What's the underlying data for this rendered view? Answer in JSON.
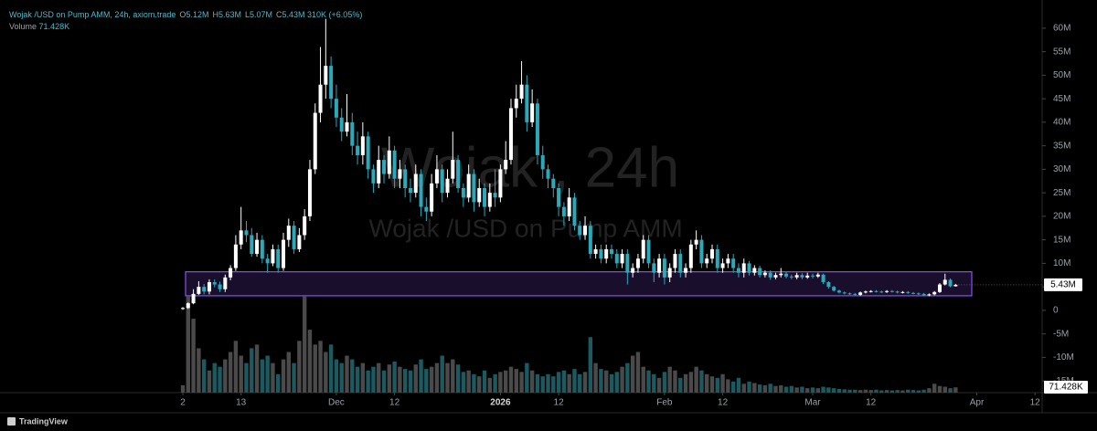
{
  "chart_data": {
    "type": "candlestick",
    "header": {
      "symbol": "Wojak /USD on Pump AMM, 24h, axiom.trade",
      "ohlc": [
        {
          "key": "O",
          "value": "5.12M"
        },
        {
          "key": "H",
          "value": "5.63M"
        },
        {
          "key": "L",
          "value": "5.07M"
        },
        {
          "key": "C",
          "value": "5.43M"
        }
      ],
      "change": "310K (+6.05%)",
      "volume_title": "Volume",
      "volume_value": "71.428K"
    },
    "watermark": {
      "title": "Wojak , 24h",
      "subtitle": "Wojak /USD on Pump AMM"
    },
    "logo": "TradingView",
    "last_price_label": "5.43M",
    "last_volume_label": "71.428K",
    "up_color": "#ffffff",
    "down_color": "#2aa9bb",
    "volume_up_color": "#4a4a4a",
    "volume_down_color": "#1b5a60",
    "zone": {
      "high": 8.2,
      "low": 3.1,
      "color": "#8a4ff0"
    },
    "grid": false,
    "ylim": [
      -17.5,
      66
    ],
    "yticks": [
      {
        "value": 60,
        "label": "60M"
      },
      {
        "value": 55,
        "label": "55M"
      },
      {
        "value": 50,
        "label": "50M"
      },
      {
        "value": 45,
        "label": "45M"
      },
      {
        "value": 40,
        "label": "40M"
      },
      {
        "value": 35,
        "label": "35M"
      },
      {
        "value": 30,
        "label": "30M"
      },
      {
        "value": 25,
        "label": "25M"
      },
      {
        "value": 20,
        "label": "20M"
      },
      {
        "value": 15,
        "label": "15M"
      },
      {
        "value": 10,
        "label": "10M"
      },
      {
        "value": 5,
        "label": "5M"
      },
      0,
      {
        "value": -5,
        "label": "-5M"
      },
      {
        "value": -10,
        "label": "-10M"
      },
      {
        "value": -15,
        "label": "-15M"
      }
    ],
    "xticks": [
      {
        "value": 0,
        "label": "2"
      },
      {
        "value": 11,
        "label": "13"
      },
      {
        "value": 29,
        "label": "Dec"
      },
      {
        "value": 40,
        "label": "12"
      },
      {
        "value": 60,
        "label": "2026"
      },
      {
        "value": 71,
        "label": "12"
      },
      {
        "value": 91,
        "label": "Feb"
      },
      {
        "value": 102,
        "label": "12"
      },
      {
        "value": 119,
        "label": "Mar"
      },
      {
        "value": 130,
        "label": "12"
      },
      {
        "value": 150,
        "label": "Apr"
      },
      {
        "value": 161,
        "label": "12"
      }
    ],
    "open": [
      0.3,
      0.5,
      1.5,
      3.5,
      5,
      4,
      6,
      5.5,
      4.5,
      7,
      9,
      14,
      17,
      16,
      12,
      15,
      11,
      10,
      13,
      9,
      15,
      18,
      13,
      16,
      20,
      30,
      42,
      48,
      52,
      45,
      41,
      38,
      40,
      35,
      33,
      37,
      30,
      27,
      32,
      29,
      34,
      28,
      30,
      26,
      25,
      29,
      22,
      21,
      27,
      30,
      25,
      28,
      32,
      26,
      24,
      29,
      23,
      26,
      22,
      25,
      24,
      30,
      32,
      43,
      45,
      48,
      40,
      44,
      33,
      30,
      28,
      26,
      22,
      20,
      24,
      18,
      16,
      18,
      12,
      13,
      11,
      13,
      12,
      10,
      12,
      8,
      9,
      11,
      15,
      10,
      8,
      11,
      7,
      9,
      12,
      8,
      9,
      14,
      15,
      10,
      11,
      13,
      9,
      10,
      11,
      9,
      8,
      10,
      8,
      9,
      7.5,
      8,
      7,
      7.5,
      7.8,
      7.2,
      7,
      7.5,
      7,
      7.4,
      7.2,
      7.6,
      6,
      5,
      4.2,
      3.8,
      3.6,
      3.5,
      3.3,
      3.8,
      4,
      4.1,
      4,
      3.9,
      4.1,
      4,
      3.8,
      3.9,
      3.7,
      3.6,
      3.5,
      3.2,
      3.4,
      3.9,
      5.5,
      6.5,
      5.12
    ],
    "high": [
      0.7,
      1.7,
      4.5,
      6.2,
      5.6,
      6.6,
      6.6,
      6.1,
      7.6,
      9.6,
      16,
      22,
      19,
      17.5,
      16.5,
      16,
      12,
      14,
      14,
      16.5,
      19.5,
      19,
      17.5,
      21.5,
      32,
      44,
      56,
      62,
      54,
      48,
      43,
      46,
      42,
      38,
      40,
      38,
      31,
      35,
      33,
      37,
      35,
      32,
      31,
      28,
      31,
      30,
      24,
      29,
      33,
      31,
      30,
      38,
      33,
      27,
      31,
      30,
      28,
      27,
      27,
      30,
      31,
      36,
      45,
      48,
      53,
      50,
      47,
      45,
      35,
      31,
      29,
      27,
      23,
      26,
      25,
      19,
      20,
      19,
      14,
      14,
      14,
      14,
      13,
      13,
      13,
      10,
      12,
      16,
      16,
      11,
      12,
      12,
      10,
      13,
      13,
      10,
      15,
      17,
      16,
      12,
      14,
      14,
      11,
      12,
      12,
      10,
      11,
      10.5,
      9.6,
      9.5,
      8.5,
      8.5,
      8,
      9,
      8.2,
      7.6,
      8,
      7.9,
      8,
      7.8,
      8,
      7.8,
      6.2,
      5.2,
      4.4,
      4,
      3.8,
      3.7,
      4,
      4.2,
      4.3,
      4.3,
      4.2,
      4.3,
      4.3,
      4.2,
      4.1,
      4.1,
      3.9,
      3.8,
      3.7,
      3.6,
      4.1,
      5.8,
      7.8,
      6.8,
      5.63
    ],
    "low": [
      0.1,
      0.3,
      1.3,
      3.3,
      3.4,
      3.4,
      4.9,
      3.9,
      3.9,
      6.4,
      8.4,
      13,
      14.5,
      11.4,
      11.4,
      10,
      8,
      9.4,
      8,
      8.4,
      13.5,
      12,
      12.4,
      15,
      19,
      29,
      40,
      45,
      43,
      39,
      36,
      37,
      33,
      31,
      31,
      28,
      25,
      26,
      27,
      28,
      26,
      26,
      24,
      23,
      24,
      20,
      19,
      20,
      26,
      23,
      24,
      27,
      25,
      22,
      23,
      21,
      22,
      20,
      21,
      22,
      23,
      29,
      31,
      41,
      44,
      38,
      39,
      31,
      28,
      26,
      24,
      20,
      18,
      19,
      17,
      15,
      15,
      11,
      11,
      10,
      10,
      11,
      9,
      9,
      5.5,
      7,
      8,
      10,
      9,
      6,
      7,
      5.5,
      6,
      8,
      7,
      7,
      8,
      13,
      9,
      9,
      10,
      8,
      8,
      9,
      8,
      7,
      7,
      7.4,
      7.4,
      7,
      7,
      6.5,
      6.6,
      7,
      6.8,
      6.6,
      6.6,
      6.6,
      6.7,
      6.8,
      6.9,
      5.6,
      4.6,
      4,
      3.6,
      3.4,
      3.3,
      3.1,
      3.1,
      3.6,
      3.8,
      3.8,
      3.7,
      3.7,
      3.8,
      3.6,
      3.6,
      3.5,
      3.4,
      3.3,
      3,
      3,
      3.2,
      3.7,
      5.3,
      4.9,
      5.07
    ],
    "close": [
      0.5,
      1.5,
      3.5,
      5,
      4,
      6,
      5.5,
      4.5,
      7,
      9,
      14,
      17,
      16,
      12,
      15,
      11,
      10,
      13,
      9,
      15,
      18,
      13,
      16,
      20,
      30,
      42,
      48,
      52,
      45,
      41,
      38,
      40,
      35,
      33,
      37,
      30,
      27,
      32,
      29,
      34,
      28,
      30,
      26,
      25,
      29,
      22,
      21,
      27,
      30,
      25,
      28,
      32,
      26,
      24,
      29,
      23,
      26,
      22,
      25,
      24,
      30,
      32,
      43,
      45,
      48,
      40,
      44,
      33,
      30,
      28,
      26,
      22,
      20,
      24,
      18,
      16,
      18,
      12,
      13,
      11,
      13,
      12,
      10,
      12,
      8,
      9,
      11,
      15,
      10,
      8,
      11,
      7,
      9,
      12,
      8,
      9,
      14,
      15,
      10,
      11,
      13,
      9,
      10,
      11,
      9,
      8,
      10,
      8,
      9,
      7.5,
      8,
      7,
      7.5,
      7.8,
      7.2,
      7,
      7.5,
      7,
      7.4,
      7.2,
      7.6,
      6,
      5,
      4.2,
      3.8,
      3.6,
      3.5,
      3.3,
      3.8,
      4,
      4.1,
      4,
      3.9,
      4.1,
      4,
      3.8,
      3.9,
      3.7,
      3.6,
      3.5,
      3.2,
      3.4,
      3.9,
      5.5,
      6.5,
      5.12,
      5.43
    ],
    "volume": [
      100,
      1300,
      1000,
      600,
      450,
      300,
      400,
      350,
      450,
      550,
      700,
      500,
      400,
      600,
      650,
      450,
      500,
      400,
      250,
      450,
      550,
      400,
      700,
      1300,
      850,
      650,
      700,
      550,
      650,
      450,
      400,
      500,
      450,
      350,
      400,
      300,
      350,
      400,
      300,
      380,
      420,
      350,
      320,
      300,
      380,
      450,
      320,
      350,
      400,
      500,
      400,
      450,
      380,
      280,
      300,
      250,
      220,
      300,
      200,
      250,
      280,
      300,
      350,
      320,
      280,
      400,
      300,
      250,
      220,
      250,
      220,
      280,
      300,
      250,
      320,
      250,
      280,
      750,
      400,
      320,
      300,
      250,
      280,
      350,
      400,
      500,
      550,
      350,
      300,
      250,
      200,
      280,
      350,
      300,
      200,
      250,
      280,
      350,
      300,
      250,
      220,
      200,
      250,
      180,
      150,
      200,
      120,
      150,
      130,
      110,
      100,
      120,
      90,
      100,
      80,
      90,
      70,
      80,
      60,
      70,
      60,
      80,
      70,
      60,
      50,
      45,
      40,
      40,
      35,
      40,
      35,
      40,
      30,
      35,
      30,
      35,
      30,
      40,
      35,
      30,
      40,
      60,
      120,
      90,
      80,
      60,
      71.428
    ]
  }
}
